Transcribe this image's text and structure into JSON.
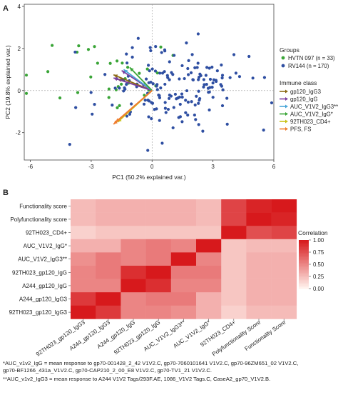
{
  "chart_data": [
    {
      "panel_label": "A",
      "type": "scatter",
      "xlabel": "PC1 (50.2% explained var.)",
      "ylabel": "PC2 (19.8% explained var.)",
      "xlim": [
        -6.3,
        6.0
      ],
      "ylim": [
        -3.3,
        4.1
      ],
      "xticks": [
        -6,
        -3,
        0,
        3,
        6
      ],
      "yticks": [
        -2,
        0,
        2,
        4
      ],
      "tick_labels_x": [
        "-6",
        "-3",
        "0",
        "3",
        "6"
      ],
      "tick_labels_y": [
        "-2",
        "0",
        "2",
        "4"
      ],
      "legend_groups": {
        "title": "Groups",
        "items": [
          {
            "label": "HVTN 097 (n = 33)",
            "color": "#3aa537"
          },
          {
            "label": "RV144 (n = 170)",
            "color": "#2f4fa2"
          }
        ]
      },
      "legend_immune": {
        "title": "Immune class",
        "items": [
          {
            "label": "gp120_IgG3",
            "color": "#8b6914"
          },
          {
            "label": "gp120_IgG",
            "color": "#7b3fa0"
          },
          {
            "label": "AUC_V1V2_IgG3**",
            "color": "#4aa6d8"
          },
          {
            "label": "AUC_V1V2_IgG*",
            "color": "#3aa537"
          },
          {
            "label": "92TH023_CD4+",
            "color": "#c9c218"
          },
          {
            "label": "PFS, FS",
            "color": "#ef7d2f"
          }
        ]
      },
      "vectors": [
        {
          "group": "gp120_IgG3",
          "x": -1.9,
          "y": 0.75,
          "color": "#8b6914"
        },
        {
          "group": "gp120_IgG3",
          "x": -1.7,
          "y": 0.55,
          "color": "#8b6914"
        },
        {
          "group": "gp120_IgG",
          "x": -1.9,
          "y": 0.6,
          "color": "#7b3fa0"
        },
        {
          "group": "gp120_IgG",
          "x": -1.5,
          "y": 0.95,
          "color": "#7b3fa0"
        },
        {
          "group": "AUC_V1V2_IgG3**",
          "x": -1.4,
          "y": 1.0,
          "color": "#4aa6d8"
        },
        {
          "group": "AUC_V1V2_IgG*",
          "x": -1.1,
          "y": 1.1,
          "color": "#3aa537"
        },
        {
          "group": "92TH023_CD4+",
          "x": -1.7,
          "y": -1.5,
          "color": "#c9c218"
        },
        {
          "group": "PFS, FS",
          "x": -1.9,
          "y": -1.6,
          "color": "#ef7d2f"
        },
        {
          "group": "PFS, FS",
          "x": -1.8,
          "y": -1.5,
          "color": "#ef7d2f"
        }
      ]
    },
    {
      "panel_label": "B",
      "type": "heatmap",
      "rows": [
        "Functionality score",
        "Polyfunctionality score",
        "92TH023_CD4+",
        "AUC_V1V2_IgG*",
        "AUC_V1V2_IgG3**",
        "92TH023_gp120_IgG",
        "A244_gp120_IgG",
        "A244_gp120_IgG3",
        "92TH023_gp120_IgG3"
      ],
      "columns": [
        "92TH023_gp120_IgG3",
        "A244_gp120_IgG3",
        "A244_gp120_IgG",
        "92TH023_gp120_IgG",
        "AUC_V1V2_IgG3**",
        "AUC_V1V2_IgG*",
        "92TH023_CD4+",
        "Polyfunctionality Score",
        "Functionality Score"
      ],
      "values": [
        [
          0.25,
          0.3,
          0.3,
          0.3,
          0.3,
          0.25,
          0.8,
          0.95,
          1.0
        ],
        [
          0.25,
          0.3,
          0.3,
          0.3,
          0.3,
          0.25,
          0.8,
          1.0,
          0.95
        ],
        [
          0.15,
          0.2,
          0.2,
          0.2,
          0.2,
          0.2,
          1.0,
          0.75,
          0.8
        ],
        [
          0.3,
          0.3,
          0.5,
          0.55,
          0.5,
          1.0,
          0.2,
          0.25,
          0.25
        ],
        [
          0.45,
          0.55,
          0.5,
          0.55,
          1.0,
          0.5,
          0.2,
          0.3,
          0.3
        ],
        [
          0.5,
          0.55,
          0.9,
          1.0,
          0.55,
          0.55,
          0.2,
          0.3,
          0.3
        ],
        [
          0.5,
          0.5,
          1.0,
          0.9,
          0.5,
          0.5,
          0.2,
          0.3,
          0.3
        ],
        [
          0.85,
          1.0,
          0.5,
          0.55,
          0.55,
          0.3,
          0.2,
          0.3,
          0.3
        ],
        [
          1.0,
          0.85,
          0.5,
          0.5,
          0.45,
          0.3,
          0.15,
          0.25,
          0.25
        ]
      ],
      "colorbar": {
        "title": "Correlation",
        "ticks": [
          1.0,
          0.75,
          0.5,
          0.25,
          0.0
        ],
        "tick_labels": [
          "1.00",
          "0.75",
          "0.50",
          "0.25",
          "0.00"
        ],
        "low_color": "#fff1ec",
        "high_color": "#d7191c"
      }
    }
  ],
  "footnotes": {
    "line1": "*AUC_v1v2_IgG = mean response to gp70-001428_2_42 V1V2.C, gp70-7060101641 V1V2.C, gp70-96ZM651_02 V1V2.C,",
    "line2": "gp70-BF1266_431a_V1V2.C, gp70-CAP210_2_00_E8 V1V2.C, gp70-TV1_21 V1V2.C.",
    "line3": "**AUC_v1v2_IgG3 = mean response to A244 V1V2 Tags/293F.AE, 1086_V1V2 Tags.C, CaseA2_gp70_V1V2.B."
  }
}
